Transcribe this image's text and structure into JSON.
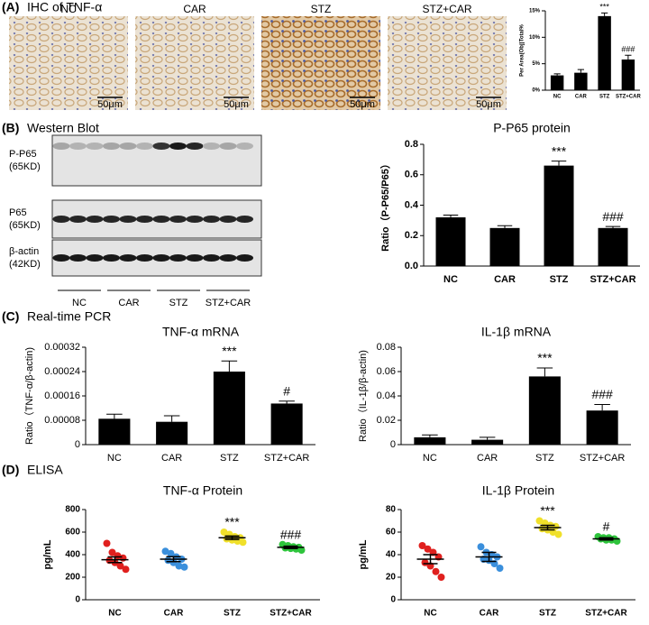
{
  "panel_a": {
    "label": "(A)",
    "title": "IHC of TNF-α",
    "images": [
      "NC",
      "CAR",
      "STZ",
      "STZ+CAR"
    ],
    "scale_bar": "50μm"
  },
  "panel_b": {
    "label": "(B)",
    "title": "Western Blot",
    "rows": [
      {
        "name": "P-P65",
        "size": "(65KD)"
      },
      {
        "name": "P65",
        "size": "(65KD)"
      },
      {
        "name": "β-actin",
        "size": "(42KD)"
      }
    ],
    "groups": [
      "NC",
      "CAR",
      "STZ",
      "STZ+CAR"
    ]
  },
  "panel_c": {
    "label": "(C)",
    "title": "Real-time PCR"
  },
  "panel_d": {
    "label": "(D)",
    "title": "ELISA"
  },
  "chart_data": [
    {
      "type": "bar",
      "y_label": "Per Area(Obj)Total%",
      "categories": [
        "NC",
        "CAR",
        "STZ",
        "STZ+CAR"
      ],
      "values": [
        2.8,
        3.3,
        14,
        5.8
      ],
      "errors": [
        0.3,
        0.6,
        0.6,
        0.8
      ],
      "color": "#000000",
      "annotations": [
        null,
        null,
        "***",
        "###"
      ],
      "ylim": [
        0,
        15
      ],
      "yticks": [
        {
          "value": 0,
          "label": "0%"
        },
        {
          "value": 5,
          "label": "5%"
        },
        {
          "value": 10,
          "label": "10%"
        },
        {
          "value": 15,
          "label": "15%"
        }
      ]
    },
    {
      "type": "bar",
      "title": "P-P65 protein",
      "y_label": "Ratio（P-P65/P65）",
      "categories": [
        "NC",
        "CAR",
        "STZ",
        "STZ+CAR"
      ],
      "values": [
        0.32,
        0.25,
        0.66,
        0.25
      ],
      "errors": [
        0.015,
        0.015,
        0.03,
        0.01
      ],
      "color": "#000000",
      "annotations": [
        null,
        null,
        "***",
        "###"
      ],
      "ylim": [
        0,
        0.8
      ],
      "yticks": [
        {
          "value": 0,
          "label": "0.0"
        },
        0.2,
        0.4,
        0.6,
        0.8
      ]
    },
    {
      "type": "bar",
      "title": "TNF-α mRNA",
      "y_label": "Ratio（TNF-α/β-actin)",
      "categories": [
        "NC",
        "CAR",
        "STZ",
        "STZ+CAR"
      ],
      "values": [
        8.5e-05,
        7.5e-05,
        0.00024,
        0.000135
      ],
      "errors": [
        1.5e-05,
        2e-05,
        3.5e-05,
        8e-06
      ],
      "color": "#000000",
      "annotations": [
        null,
        null,
        "***",
        "#"
      ],
      "ylim": [
        0,
        0.00032
      ],
      "yticks": [
        0,
        8e-05,
        0.00016,
        0.00024,
        0.00032
      ]
    },
    {
      "type": "bar",
      "title": "IL-1β mRNA",
      "y_label": "Ratio（IL-1β/β-actin)",
      "categories": [
        "NC",
        "CAR",
        "STZ",
        "STZ+CAR"
      ],
      "values": [
        0.006,
        0.004,
        0.056,
        0.028
      ],
      "errors": [
        0.002,
        0.002,
        0.007,
        0.005
      ],
      "color": "#000000",
      "annotations": [
        null,
        null,
        "***",
        "###"
      ],
      "ylim": [
        0,
        0.08
      ],
      "yticks": [
        0,
        0.02,
        0.04,
        0.06,
        0.08
      ]
    },
    {
      "type": "strip",
      "title": "TNF-α Protein",
      "y_label": "pg/mL",
      "categories": [
        "NC",
        "CAR",
        "STZ",
        "STZ+CAR"
      ],
      "series": [
        {
          "color": "#e0201e",
          "values": [
            500,
            420,
            390,
            370,
            350,
            330,
            300,
            270
          ]
        },
        {
          "color": "#3a8fdc",
          "values": [
            430,
            410,
            380,
            360,
            350,
            330,
            300,
            290
          ]
        },
        {
          "color": "#f0e02a",
          "values": [
            600,
            580,
            560,
            550,
            540,
            530,
            520,
            510
          ]
        },
        {
          "color": "#2ec43c",
          "values": [
            490,
            480,
            470,
            465,
            460,
            455,
            450,
            440
          ]
        }
      ],
      "means": [
        355,
        360,
        550,
        465
      ],
      "sem": [
        25,
        22,
        15,
        10
      ],
      "annotations": [
        null,
        null,
        "***",
        "###"
      ],
      "ylim": [
        0,
        800
      ],
      "yticks": [
        0,
        200,
        400,
        600,
        800
      ]
    },
    {
      "type": "strip",
      "title": "IL-1β Protein",
      "y_label": "pg/mL",
      "categories": [
        "NC",
        "CAR",
        "STZ",
        "STZ+CAR"
      ],
      "series": [
        {
          "color": "#e0201e",
          "values": [
            48,
            45,
            42,
            38,
            33,
            30,
            25,
            20
          ]
        },
        {
          "color": "#3a8fdc",
          "values": [
            47,
            42,
            40,
            38,
            36,
            35,
            32,
            28
          ]
        },
        {
          "color": "#f0e02a",
          "values": [
            70,
            68,
            66,
            65,
            63,
            62,
            60,
            58
          ]
        },
        {
          "color": "#2ec43c",
          "values": [
            56,
            55,
            55,
            54,
            54,
            53,
            53,
            52
          ]
        }
      ],
      "means": [
        36,
        38,
        64,
        54
      ],
      "sem": [
        4,
        4,
        2,
        1
      ],
      "annotations": [
        null,
        null,
        "***",
        "#"
      ],
      "ylim": [
        0,
        80
      ],
      "yticks": [
        0,
        20,
        40,
        60,
        80
      ]
    }
  ]
}
